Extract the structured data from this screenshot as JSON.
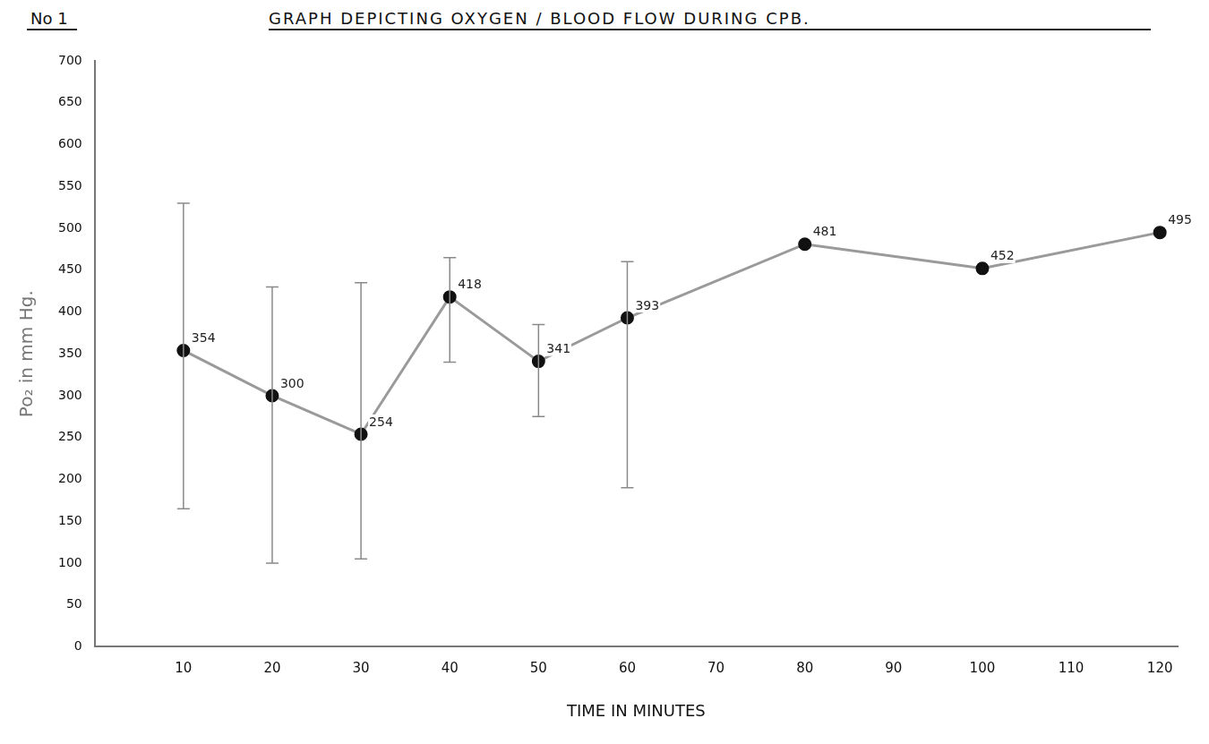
{
  "chart_data": {
    "type": "line",
    "figure_label": "No 1",
    "title": "GRAPH DEPICTING OXYGEN / BLOOD FLOW DURING CPB.",
    "x_label": "TIME IN MINUTES",
    "y_label": "Po₂ in mm Hg.",
    "x": [
      10,
      20,
      30,
      40,
      50,
      60,
      80,
      100,
      120
    ],
    "values": [
      354,
      300,
      254,
      418,
      341,
      393,
      481,
      452,
      495
    ],
    "error_low": [
      165,
      100,
      105,
      340,
      275,
      190,
      null,
      null,
      null
    ],
    "error_high": [
      530,
      430,
      435,
      465,
      385,
      460,
      null,
      null,
      null
    ],
    "color": "#9a9a9a",
    "marker": "circle",
    "line_style": "solid",
    "data_labels": true,
    "grid": false,
    "xlim": [
      0,
      122
    ],
    "xticks": [
      10,
      20,
      30,
      40,
      50,
      60,
      70,
      80,
      90,
      100,
      110,
      120
    ],
    "ylim": [
      0,
      700
    ],
    "yticks": [
      0,
      50,
      100,
      150,
      200,
      250,
      300,
      350,
      400,
      450,
      500,
      550,
      600,
      650,
      700
    ]
  }
}
